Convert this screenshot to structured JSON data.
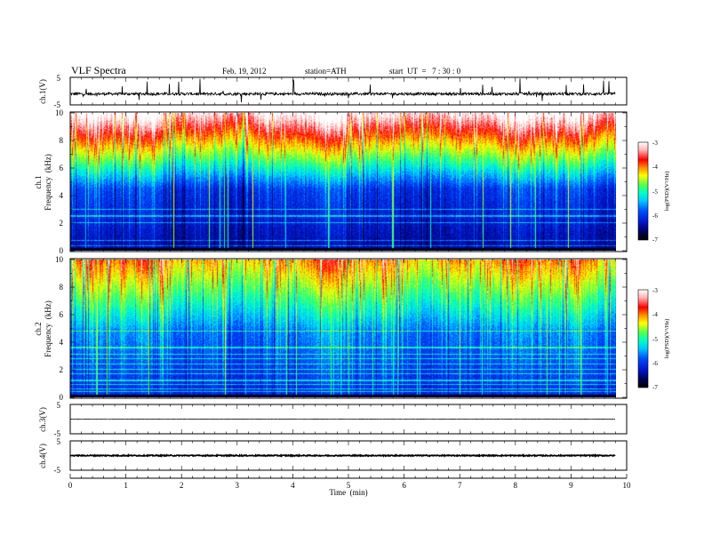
{
  "header": {
    "title": "VLF  Spectra",
    "date": "Feb. 19, 2012",
    "station": "station=ATH",
    "start_time": "start  UT  =   7 : 30 : 0"
  },
  "chart_data": [
    {
      "type": "line",
      "panel": "ch1-waveform",
      "ylabel": "ch.1(V)",
      "ylim": [
        -5,
        5
      ],
      "ytick_labels": [
        "5",
        "-5"
      ],
      "baseline_v": -1.0,
      "noise_amplitude_v": 0.5,
      "impulsive_spikes_v": 4.5
    },
    {
      "type": "heatmap",
      "panel": "ch1-spectrogram",
      "ylabel_lines": [
        "ch.1",
        "Frequency  (kHz)"
      ],
      "ylim": [
        0,
        10
      ],
      "ytick_labels": [
        "0",
        "2",
        "4",
        "6",
        "8",
        "10"
      ],
      "colorbar": {
        "label": "log(PSD)(V²/Hz)",
        "range": [
          -7,
          -3
        ],
        "tick_labels": [
          "-3",
          "-4",
          "-5",
          "-6",
          "-7"
        ]
      }
    },
    {
      "type": "heatmap",
      "panel": "ch2-spectrogram",
      "ylabel_lines": [
        "ch.2",
        "Frequency  (kHz)"
      ],
      "ylim": [
        0,
        10
      ],
      "ytick_labels": [
        "0",
        "2",
        "4",
        "6",
        "8",
        "10"
      ],
      "colorbar": {
        "label": "log(PSD)(V²/Hz)",
        "range": [
          -7,
          -3
        ],
        "tick_labels": [
          "-3",
          "-4",
          "-5",
          "-6",
          "-7"
        ]
      }
    },
    {
      "type": "line",
      "panel": "ch3-waveform",
      "ylabel": "ch.3(V)",
      "ylim": [
        -5,
        5
      ],
      "ytick_labels": [
        "5",
        "-5"
      ],
      "baseline_v": 0.0,
      "noise_amplitude_v": 0.08
    },
    {
      "type": "line",
      "panel": "ch4-waveform",
      "ylabel": "ch.4(V)",
      "ylim": [
        -5,
        5
      ],
      "ytick_labels": [
        "5",
        "-5"
      ],
      "baseline_v": 0.0,
      "noise_amplitude_v": 0.18
    }
  ],
  "x_axis": {
    "label": "Time  (min)",
    "range": [
      0,
      10
    ],
    "data_end_min": 9.8,
    "tick_labels": [
      "0",
      "1",
      "2",
      "3",
      "4",
      "5",
      "6",
      "7",
      "8",
      "9",
      "10"
    ]
  },
  "colors": {
    "colormap": [
      "#000000",
      "#000040",
      "#000aa0",
      "#0030ff",
      "#00c8ff",
      "#00ffc8",
      "#50ff50",
      "#ffff00",
      "#ff8c00",
      "#ff0000",
      "#ffb4b4",
      "#ffffff"
    ]
  }
}
